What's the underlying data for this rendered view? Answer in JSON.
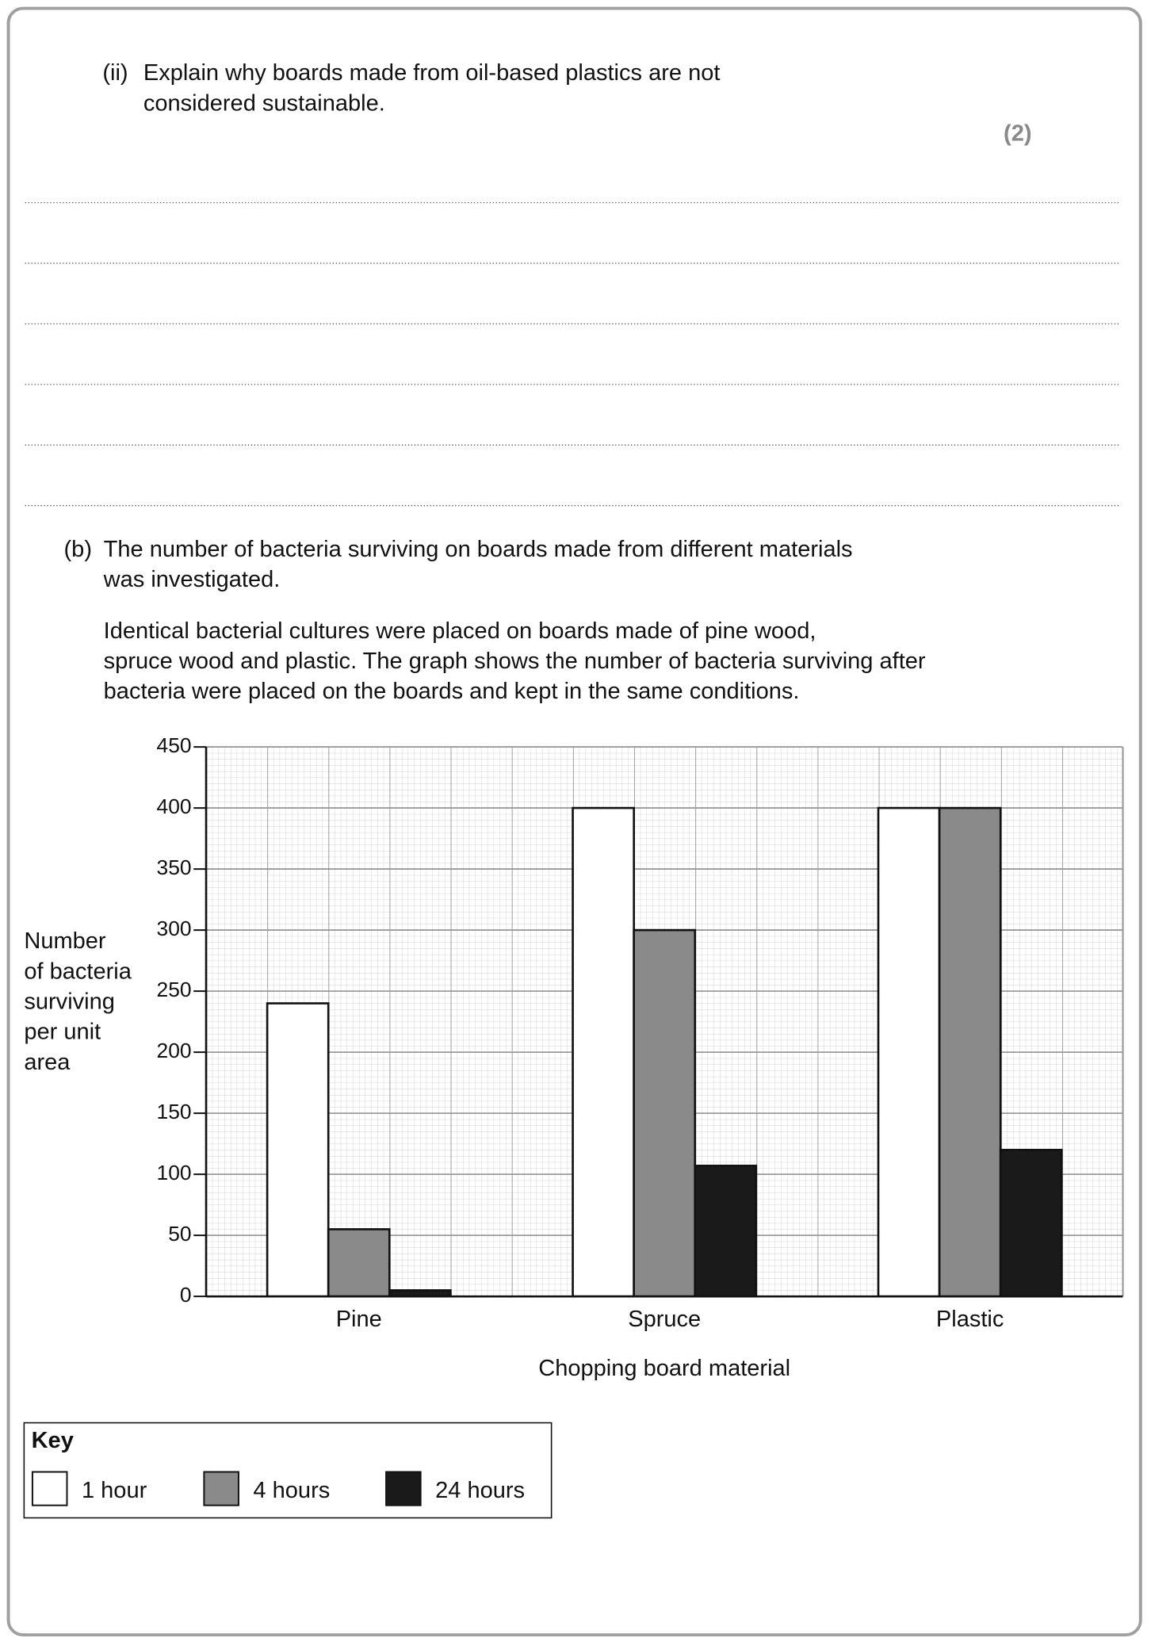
{
  "question_ii": {
    "label": "(ii)",
    "lines": [
      "Explain why boards made from oil-based plastics are not",
      "considered sustainable."
    ],
    "marks": "(2)"
  },
  "question_b": {
    "label": "(b)",
    "lines": [
      "The number of bacteria surviving on boards made from different materials",
      "was investigated."
    ],
    "paragraph": [
      "Identical bacterial cultures were placed on boards made of pine wood,",
      "spruce wood and plastic.  The graph shows the number of bacteria surviving after",
      "bacteria were placed on the boards and kept in the same conditions."
    ]
  },
  "chart_data": {
    "type": "bar",
    "categories": [
      "Pine",
      "Spruce",
      "Plastic"
    ],
    "series": [
      {
        "name": "1 hour",
        "color": "#ffffff",
        "values": [
          240,
          400,
          400
        ]
      },
      {
        "name": "4 hours",
        "color": "#8a8a8a",
        "values": [
          55,
          300,
          400
        ]
      },
      {
        "name": "24 hours",
        "color": "#1a1a1a",
        "values": [
          5,
          107,
          120
        ]
      }
    ],
    "ylim": [
      0,
      450
    ],
    "yticks": [
      0,
      50,
      100,
      150,
      200,
      250,
      300,
      350,
      400,
      450
    ],
    "xlabel": "Chopping board material",
    "ylabel": [
      "Number",
      "of bacteria",
      "surviving",
      "per unit",
      "area"
    ],
    "legend_title": "Key",
    "grid": true
  }
}
